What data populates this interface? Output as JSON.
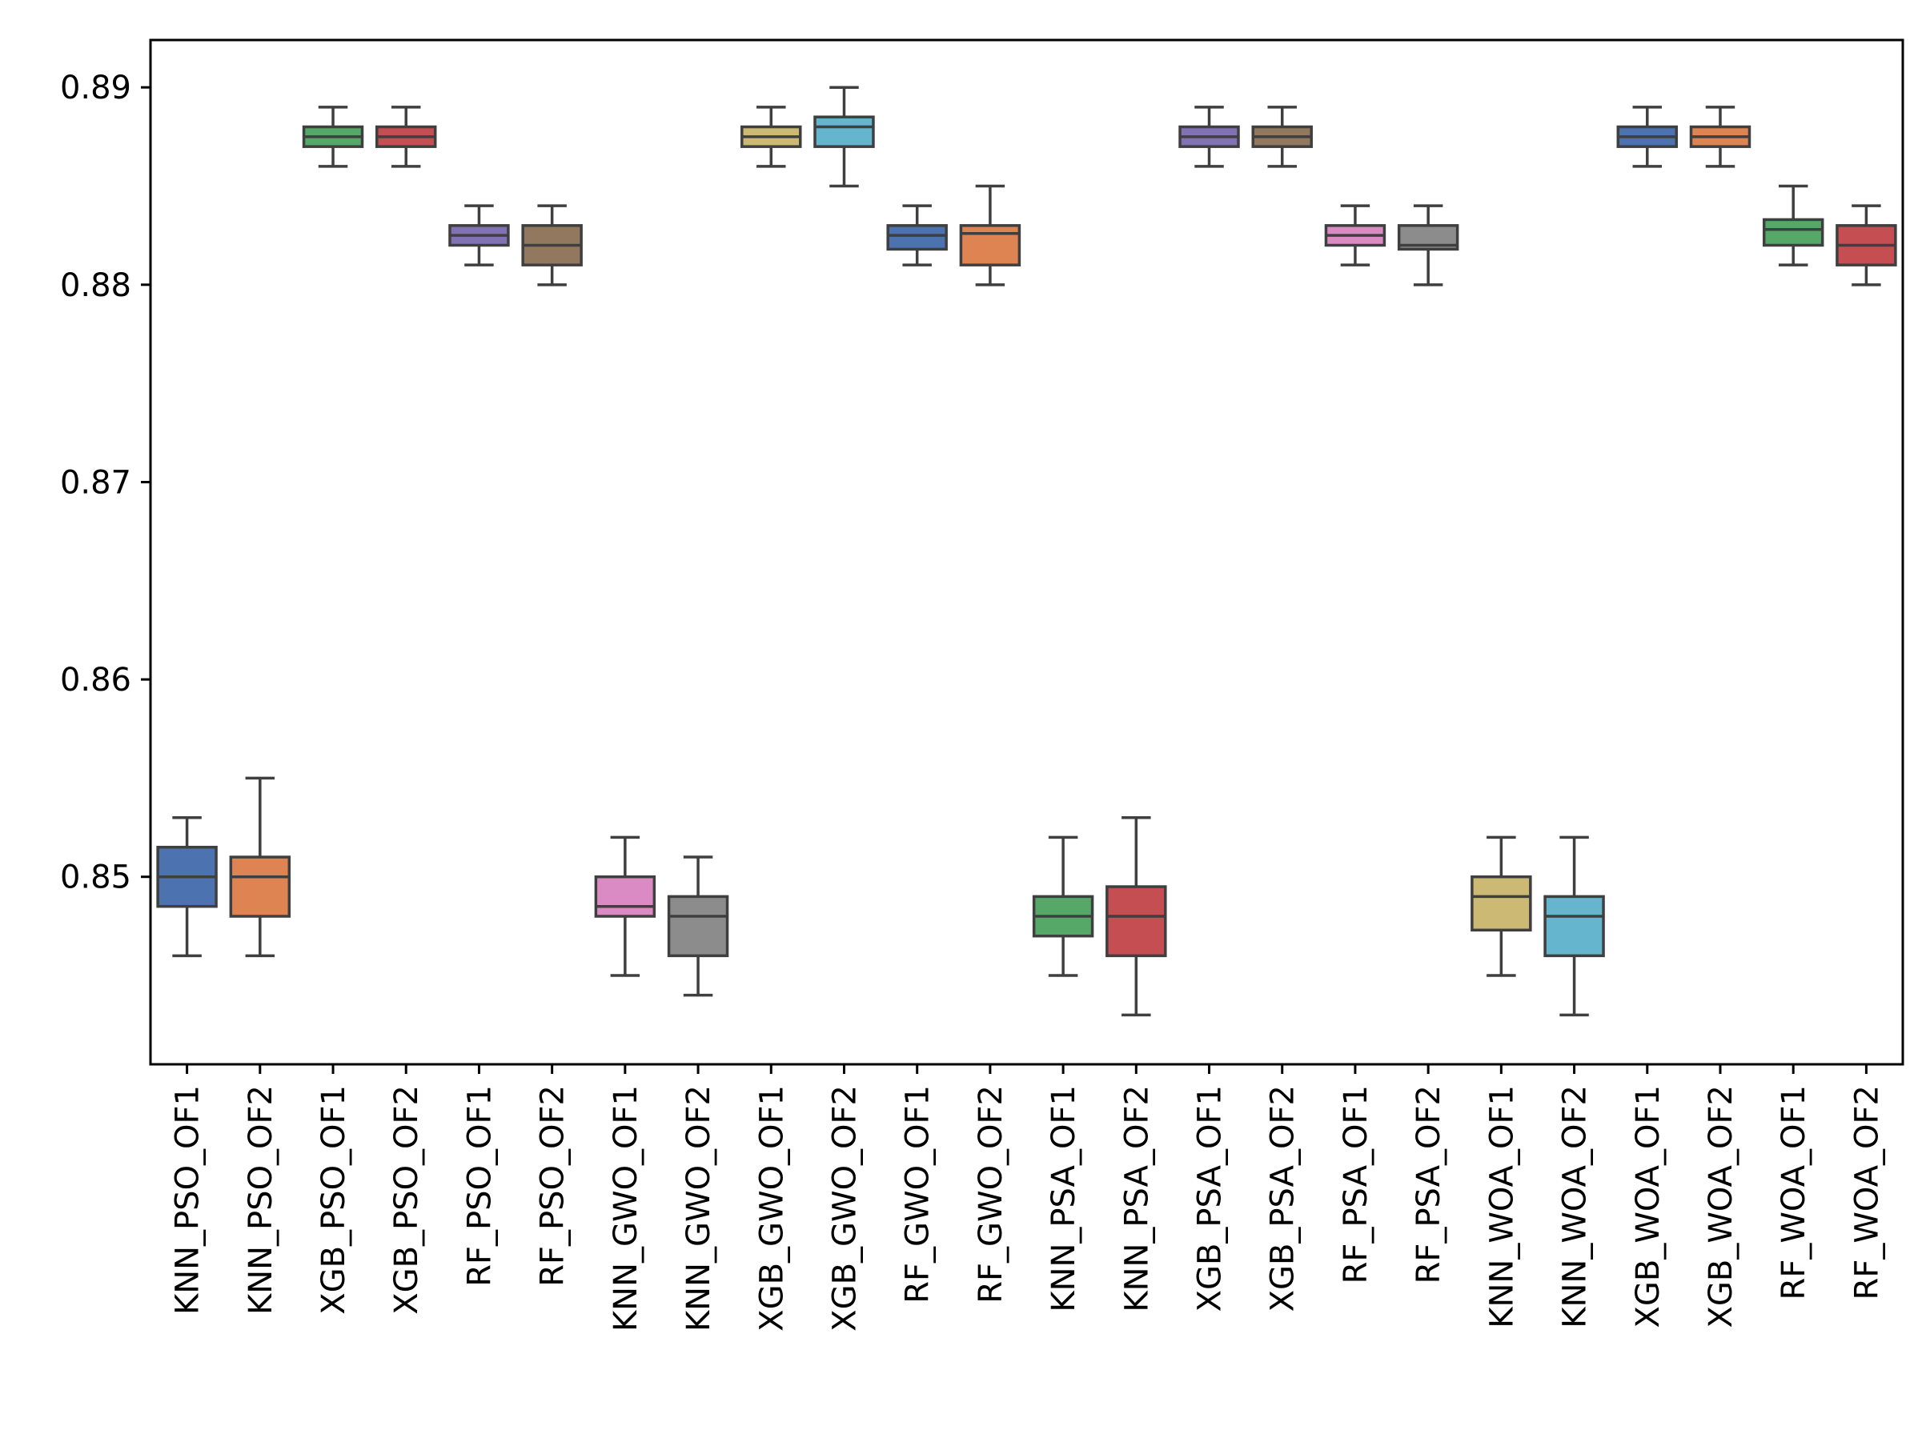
{
  "chart_data": {
    "type": "box",
    "title": "",
    "xlabel": "",
    "ylabel": "",
    "ylim": [
      0.8405,
      0.8924
    ],
    "yticks": [
      0.85,
      0.86,
      0.87,
      0.88,
      0.89
    ],
    "ytick_labels": [
      "0.85",
      "0.86",
      "0.87",
      "0.88",
      "0.89"
    ],
    "grid": false,
    "categories": [
      "KNN_PSO_OF1",
      "KNN_PSO_OF2",
      "XGB_PSO_OF1",
      "XGB_PSO_OF2",
      "RF_PSO_OF1",
      "RF_PSO_OF2",
      "KNN_GWO_OF1",
      "KNN_GWO_OF2",
      "XGB_GWO_OF1",
      "XGB_GWO_OF2",
      "RF_GWO_OF1",
      "RF_GWO_OF2",
      "KNN_PSA_OF1",
      "KNN_PSA_OF2",
      "XGB_PSA_OF1",
      "XGB_PSA_OF2",
      "RF_PSA_OF1",
      "RF_PSA_OF2",
      "KNN_WOA_OF1",
      "KNN_WOA_OF2",
      "XGB_WOA_OF1",
      "XGB_WOA_OF2",
      "RF_WOA_OF1",
      "RF_WOA_OF2"
    ],
    "boxes": [
      {
        "name": "KNN_PSO_OF1",
        "whisker_low": 0.846,
        "q1": 0.8485,
        "median": 0.85,
        "q3": 0.8515,
        "whisker_high": 0.853,
        "color": "#4c72b0"
      },
      {
        "name": "KNN_PSO_OF2",
        "whisker_low": 0.846,
        "q1": 0.848,
        "median": 0.85,
        "q3": 0.851,
        "whisker_high": 0.855,
        "color": "#dd8452"
      },
      {
        "name": "XGB_PSO_OF1",
        "whisker_low": 0.886,
        "q1": 0.887,
        "median": 0.8875,
        "q3": 0.888,
        "whisker_high": 0.889,
        "color": "#55a868"
      },
      {
        "name": "XGB_PSO_OF2",
        "whisker_low": 0.886,
        "q1": 0.887,
        "median": 0.8875,
        "q3": 0.888,
        "whisker_high": 0.889,
        "color": "#c44e52"
      },
      {
        "name": "RF_PSO_OF1",
        "whisker_low": 0.881,
        "q1": 0.882,
        "median": 0.8825,
        "q3": 0.883,
        "whisker_high": 0.884,
        "color": "#8172b3"
      },
      {
        "name": "RF_PSO_OF2",
        "whisker_low": 0.88,
        "q1": 0.881,
        "median": 0.882,
        "q3": 0.883,
        "whisker_high": 0.884,
        "color": "#937860"
      },
      {
        "name": "KNN_GWO_OF1",
        "whisker_low": 0.845,
        "q1": 0.848,
        "median": 0.8485,
        "q3": 0.85,
        "whisker_high": 0.852,
        "color": "#da8bc3"
      },
      {
        "name": "KNN_GWO_OF2",
        "whisker_low": 0.844,
        "q1": 0.846,
        "median": 0.848,
        "q3": 0.849,
        "whisker_high": 0.851,
        "color": "#8c8c8c"
      },
      {
        "name": "XGB_GWO_OF1",
        "whisker_low": 0.886,
        "q1": 0.887,
        "median": 0.8875,
        "q3": 0.888,
        "whisker_high": 0.889,
        "color": "#ccb974"
      },
      {
        "name": "XGB_GWO_OF2",
        "whisker_low": 0.885,
        "q1": 0.887,
        "median": 0.888,
        "q3": 0.8885,
        "whisker_high": 0.89,
        "color": "#64b5cd"
      },
      {
        "name": "RF_GWO_OF1",
        "whisker_low": 0.881,
        "q1": 0.8818,
        "median": 0.8825,
        "q3": 0.883,
        "whisker_high": 0.884,
        "color": "#4c72b0"
      },
      {
        "name": "RF_GWO_OF2",
        "whisker_low": 0.88,
        "q1": 0.881,
        "median": 0.8826,
        "q3": 0.883,
        "whisker_high": 0.885,
        "color": "#dd8452"
      },
      {
        "name": "KNN_PSA_OF1",
        "whisker_low": 0.845,
        "q1": 0.847,
        "median": 0.848,
        "q3": 0.849,
        "whisker_high": 0.852,
        "color": "#55a868"
      },
      {
        "name": "KNN_PSA_OF2",
        "whisker_low": 0.843,
        "q1": 0.846,
        "median": 0.848,
        "q3": 0.8495,
        "whisker_high": 0.853,
        "color": "#c44e52"
      },
      {
        "name": "XGB_PSA_OF1",
        "whisker_low": 0.886,
        "q1": 0.887,
        "median": 0.8875,
        "q3": 0.888,
        "whisker_high": 0.889,
        "color": "#8172b3"
      },
      {
        "name": "XGB_PSA_OF2",
        "whisker_low": 0.886,
        "q1": 0.887,
        "median": 0.8875,
        "q3": 0.888,
        "whisker_high": 0.889,
        "color": "#937860"
      },
      {
        "name": "RF_PSA_OF1",
        "whisker_low": 0.881,
        "q1": 0.882,
        "median": 0.8825,
        "q3": 0.883,
        "whisker_high": 0.884,
        "color": "#da8bc3"
      },
      {
        "name": "RF_PSA_OF2",
        "whisker_low": 0.88,
        "q1": 0.8818,
        "median": 0.882,
        "q3": 0.883,
        "whisker_high": 0.884,
        "color": "#8c8c8c"
      },
      {
        "name": "KNN_WOA_OF1",
        "whisker_low": 0.845,
        "q1": 0.8473,
        "median": 0.849,
        "q3": 0.85,
        "whisker_high": 0.852,
        "color": "#ccb974"
      },
      {
        "name": "KNN_WOA_OF2",
        "whisker_low": 0.843,
        "q1": 0.846,
        "median": 0.848,
        "q3": 0.849,
        "whisker_high": 0.852,
        "color": "#64b5cd"
      },
      {
        "name": "XGB_WOA_OF1",
        "whisker_low": 0.886,
        "q1": 0.887,
        "median": 0.8875,
        "q3": 0.888,
        "whisker_high": 0.889,
        "color": "#4c72b0"
      },
      {
        "name": "XGB_WOA_OF2",
        "whisker_low": 0.886,
        "q1": 0.887,
        "median": 0.8875,
        "q3": 0.888,
        "whisker_high": 0.889,
        "color": "#dd8452"
      },
      {
        "name": "RF_WOA_OF1",
        "whisker_low": 0.881,
        "q1": 0.882,
        "median": 0.8828,
        "q3": 0.8833,
        "whisker_high": 0.885,
        "color": "#55a868"
      },
      {
        "name": "RF_WOA_OF2",
        "whisker_low": 0.88,
        "q1": 0.881,
        "median": 0.882,
        "q3": 0.883,
        "whisker_high": 0.884,
        "color": "#c44e52"
      }
    ]
  }
}
